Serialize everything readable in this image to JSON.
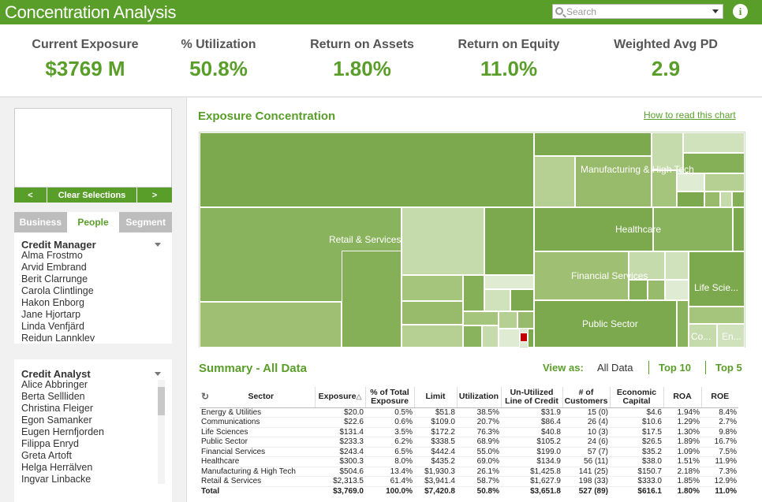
{
  "header": {
    "title": "Concentration Analysis",
    "search_placeholder": "Search",
    "info_label": "i"
  },
  "kpis": [
    {
      "label": "Current Exposure",
      "value": "$3769 M"
    },
    {
      "label": "% Utilization",
      "value": "50.8%"
    },
    {
      "label": "Return on Assets",
      "value": "1.80%"
    },
    {
      "label": "Return on Equity",
      "value": "11.0%"
    },
    {
      "label": "Weighted Avg PD",
      "value": "2.9"
    }
  ],
  "selection": {
    "prev_label": "<",
    "clear_label": "Clear Selections",
    "next_label": ">"
  },
  "tabs": [
    {
      "label": "Business"
    },
    {
      "label": "People"
    },
    {
      "label": "Segment"
    }
  ],
  "credit_manager": {
    "title": "Credit Manager",
    "items": [
      "Alma Frostmo",
      "Arvid Embrand",
      "Berit Clarrunge",
      "Carola Clintlinge",
      "Hakon Enborg",
      "Jane Hjortarp",
      "Linda Venfjärd",
      "Reidun Lannklev"
    ]
  },
  "credit_analyst": {
    "title": "Credit Analyst",
    "items": [
      "Alice Abbringer",
      "Berta Sellliden",
      "Christina Fleiger",
      "Egon Samanker",
      "Eugen Hernfjorden",
      "Filippa Enryd",
      "Greta Artoft",
      "Helga Herrälven",
      "Ingvar Linbacke"
    ]
  },
  "exposure": {
    "title": "Exposure Concentration",
    "how_to_link": "How to read this chart",
    "labels": {
      "retail": "Retail & Services",
      "manufacturing": "Manufacturing & High Tech",
      "healthcare": "Healthcare",
      "financial": "Financial Services",
      "life": "Life Scie...",
      "public": "Public Sector",
      "co": "Co...",
      "en": "En..."
    }
  },
  "summary": {
    "title": "Summary - All Data",
    "view_as_label": "View as:",
    "view_options": [
      "All Data",
      "Top 10",
      "Top 5"
    ],
    "columns": [
      "Sector",
      "Exposure",
      "% of Total Exposure",
      "Limit",
      "Utilization",
      "Un-Utilized Line of Credit",
      "# of Customers",
      "Economic Capital",
      "ROA",
      "ROE"
    ],
    "rows": [
      [
        "Energy & Utilities",
        "$20.0",
        "0.5%",
        "$51.8",
        "38.5%",
        "$31.9",
        "15 (0)",
        "$4.6",
        "1.94%",
        "8.4%"
      ],
      [
        "Communications",
        "$22.6",
        "0.6%",
        "$109.0",
        "20.7%",
        "$86.4",
        "26 (4)",
        "$10.6",
        "1.29%",
        "2.7%"
      ],
      [
        "Life Sciences",
        "$131.4",
        "3.5%",
        "$172.2",
        "76.3%",
        "$40.8",
        "10 (3)",
        "$17.5",
        "1.30%",
        "9.8%"
      ],
      [
        "Public Sector",
        "$233.3",
        "6.2%",
        "$338.5",
        "68.9%",
        "$105.2",
        "24 (6)",
        "$26.5",
        "1.89%",
        "16.7%"
      ],
      [
        "Financial Services",
        "$243.4",
        "6.5%",
        "$442.4",
        "55.0%",
        "$199.0",
        "57 (7)",
        "$35.2",
        "1.09%",
        "7.5%"
      ],
      [
        "Healthcare",
        "$300.3",
        "8.0%",
        "$435.2",
        "69.0%",
        "$134.9",
        "56 (11)",
        "$38.0",
        "1.51%",
        "11.9%"
      ],
      [
        "Manufacturing & High Tech",
        "$504.6",
        "13.4%",
        "$1,930.3",
        "26.1%",
        "$1,425.8",
        "141 (25)",
        "$150.7",
        "2.18%",
        "7.3%"
      ],
      [
        "Retail & Services",
        "$2,313.5",
        "61.4%",
        "$3,941.4",
        "58.7%",
        "$1,627.9",
        "198 (33)",
        "$333.0",
        "1.85%",
        "12.9%"
      ]
    ],
    "total": [
      "Total",
      "$3,769.0",
      "100.0%",
      "$7,420.8",
      "50.8%",
      "$3,651.8",
      "527 (89)",
      "$616.1",
      "1.80%",
      "11.0%"
    ]
  },
  "colors": {
    "brand": "#5a9e2a",
    "header_bg": "#5a9e2a"
  }
}
